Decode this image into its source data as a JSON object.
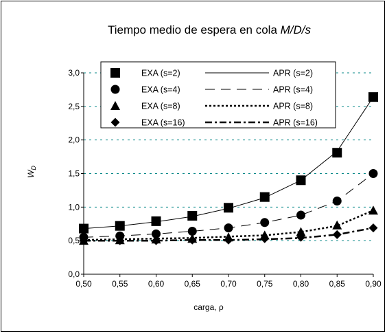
{
  "chart_data": {
    "type": "scatter",
    "title": "Tiempo medio de espera en cola ",
    "title_italic": "M/D/s",
    "xlabel": "carga, ρ",
    "ylabel": "W",
    "ylabel_sub": "D",
    "xlim": [
      0.5,
      0.9
    ],
    "ylim": [
      0.0,
      3.0
    ],
    "x_ticks": [
      "0,50",
      "0,55",
      "0,60",
      "0,65",
      "0,70",
      "0,75",
      "0,80",
      "0,85",
      "0,90"
    ],
    "y_ticks": [
      "0,0",
      "0,5",
      "1,0",
      "1,5",
      "2,0",
      "2,5",
      "3,0"
    ],
    "grid": "horizontal dashed",
    "legend_placement": "top",
    "x": [
      0.5,
      0.55,
      0.6,
      0.65,
      0.7,
      0.75,
      0.8,
      0.85,
      0.9
    ],
    "series": [
      {
        "name": "EXA (s=2)",
        "marker": "square",
        "values": [
          0.68,
          0.72,
          0.79,
          0.87,
          0.99,
          1.15,
          1.4,
          1.81,
          2.64
        ]
      },
      {
        "name": "EXA (s=4)",
        "marker": "circle",
        "values": [
          0.55,
          0.57,
          0.6,
          0.64,
          0.69,
          0.77,
          0.88,
          1.09,
          1.5
        ]
      },
      {
        "name": "EXA (s=8)",
        "marker": "triangle",
        "values": [
          0.5,
          0.51,
          0.52,
          0.53,
          0.55,
          0.58,
          0.63,
          0.73,
          0.95
        ]
      },
      {
        "name": "EXA (s=16)",
        "marker": "diamond",
        "values": [
          0.5,
          0.5,
          0.5,
          0.51,
          0.51,
          0.53,
          0.55,
          0.59,
          0.69
        ]
      },
      {
        "name": "APR (s=2)",
        "line": "solid",
        "values": [
          0.68,
          0.72,
          0.78,
          0.86,
          0.98,
          1.14,
          1.4,
          1.83,
          2.64
        ]
      },
      {
        "name": "APR (s=4)",
        "line": "long-dash",
        "values": [
          0.55,
          0.57,
          0.6,
          0.64,
          0.69,
          0.77,
          0.88,
          1.09,
          1.5
        ]
      },
      {
        "name": "APR (s=8)",
        "line": "dotted",
        "values": [
          0.51,
          0.52,
          0.53,
          0.54,
          0.56,
          0.58,
          0.63,
          0.72,
          0.95
        ]
      },
      {
        "name": "APR (s=16)",
        "line": "dash-dot",
        "values": [
          0.5,
          0.5,
          0.5,
          0.51,
          0.51,
          0.52,
          0.54,
          0.59,
          0.69
        ]
      }
    ]
  }
}
